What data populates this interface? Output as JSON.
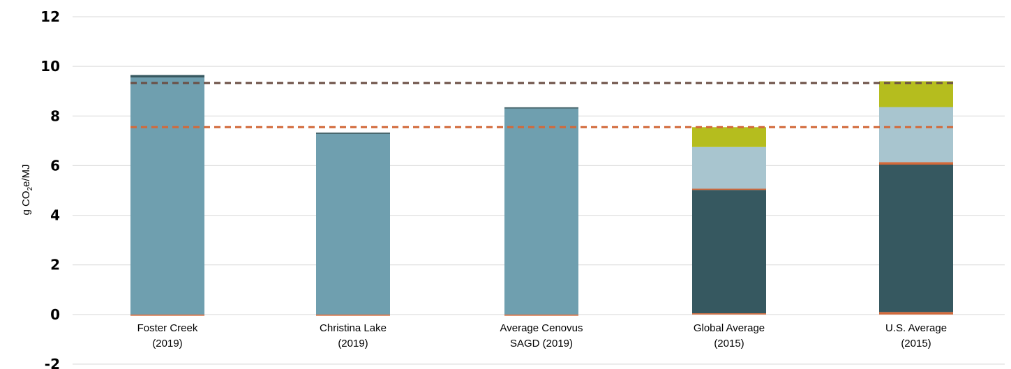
{
  "chart_data": {
    "type": "bar",
    "stacked": true,
    "title": "",
    "ylabel_parts": [
      "g CO",
      "2",
      "e/MJ"
    ],
    "ylim": [
      -2,
      12
    ],
    "yticks": [
      "12",
      "10",
      "8",
      "6",
      "4",
      "2",
      "0",
      "-2"
    ],
    "ytick_values": [
      12,
      10,
      8,
      6,
      4,
      2,
      0,
      -2
    ],
    "grid": true,
    "categories": [
      [
        "Foster Creek",
        "(2019)"
      ],
      [
        "Christina Lake",
        "(2019)"
      ],
      [
        "Average Cenovus",
        "SAGD (2019)"
      ],
      [
        "Global Average",
        "(2015)"
      ],
      [
        "U.S. Average",
        "(2015)"
      ]
    ],
    "series": [
      {
        "color": "#d2693a",
        "values": [
          -0.05,
          -0.05,
          -0.05,
          0.05,
          0.1
        ]
      },
      {
        "color": "#365860",
        "values": [
          0,
          0,
          0,
          4.97,
          5.94
        ]
      },
      {
        "color": "#6f9faf",
        "values": [
          9.55,
          7.28,
          8.3,
          0,
          0
        ]
      },
      {
        "color": "#365860",
        "values": [
          0.1,
          0.05,
          0.05,
          0,
          0
        ]
      },
      {
        "color": "#d2693a",
        "values": [
          0,
          0,
          0,
          0.05,
          0.1
        ]
      },
      {
        "color": "#a8c5cf",
        "values": [
          0,
          0,
          0,
          1.68,
          2.22
        ]
      },
      {
        "color": "#b5bd1e",
        "values": [
          0,
          0,
          0,
          0.8,
          1.04
        ]
      }
    ],
    "reference_lines": [
      {
        "value": 9.33,
        "color": "#6b4f45",
        "style": "dashed"
      },
      {
        "value": 7.55,
        "color": "#d2693a",
        "style": "dashed"
      }
    ]
  }
}
